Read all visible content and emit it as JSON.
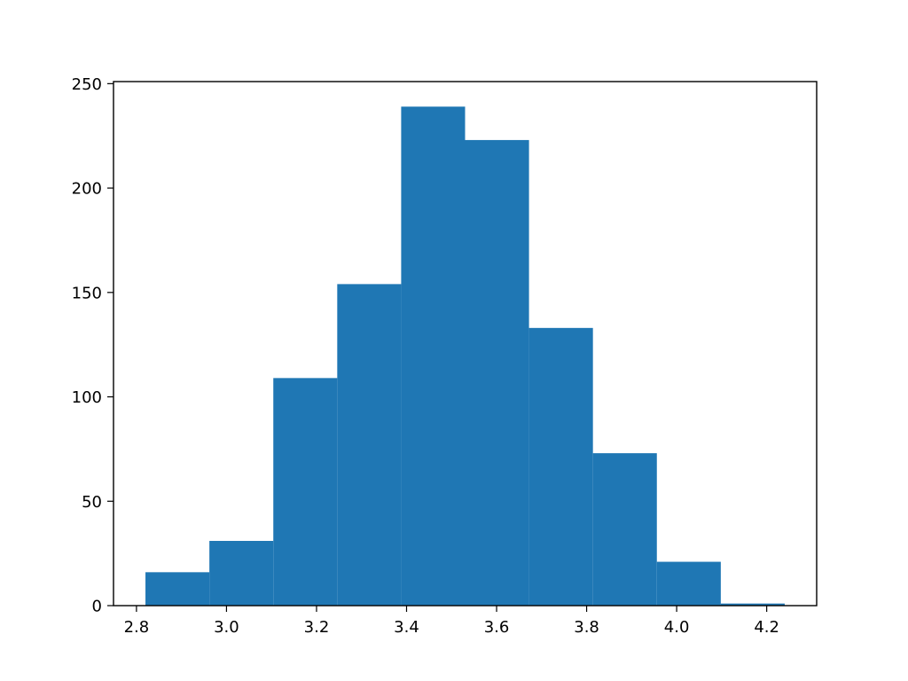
{
  "chart_data": {
    "type": "bar",
    "title": "",
    "xlabel": "",
    "ylabel": "",
    "color": "#1f77b4",
    "grid": false,
    "legend": "none",
    "bin_edges": [
      2.82,
      2.962,
      3.104,
      3.246,
      3.388,
      3.53,
      3.672,
      3.814,
      3.956,
      4.098,
      4.24
    ],
    "values": [
      16,
      31,
      109,
      154,
      239,
      223,
      133,
      73,
      21,
      1
    ],
    "xlim": [
      2.749,
      4.311
    ],
    "ylim": [
      0,
      251
    ],
    "x_ticks": [
      2.8,
      3.0,
      3.2,
      3.4,
      3.6,
      3.8,
      4.0,
      4.2
    ],
    "x_tick_labels": [
      "2.8",
      "3.0",
      "3.2",
      "3.4",
      "3.6",
      "3.8",
      "4.0",
      "4.2"
    ],
    "y_ticks": [
      0,
      50,
      100,
      150,
      200,
      250
    ],
    "y_tick_labels": [
      "0",
      "50",
      "100",
      "150",
      "200",
      "250"
    ]
  }
}
